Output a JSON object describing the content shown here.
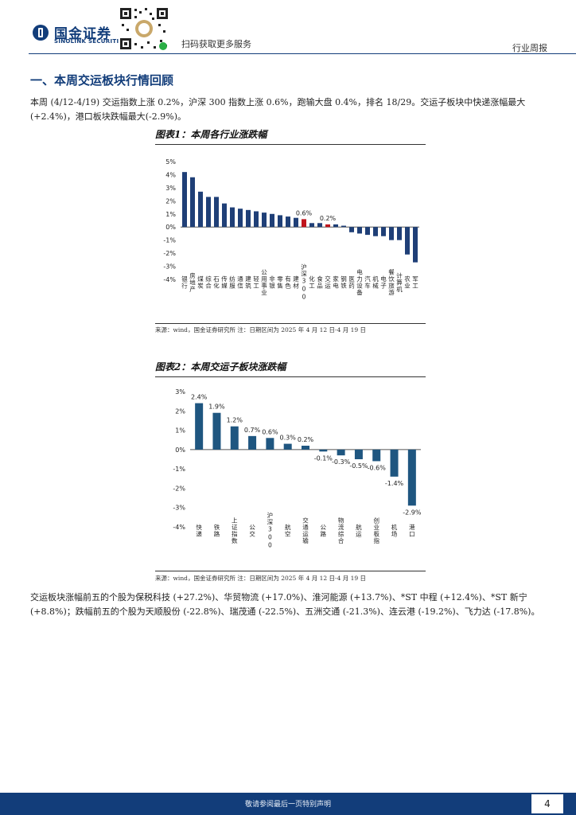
{
  "header": {
    "brand_cn": "国金证券",
    "brand_en": "SINOLINK SECURITIES",
    "qr_caption": "扫码获取更多服务",
    "report_type": "行业周报"
  },
  "section": {
    "title": "一、本周交运板块行情回顾",
    "intro": "本周 (4/12-4/19) 交运指数上涨 0.2%，沪深 300 指数上涨 0.6%，跑输大盘 0.4%，排名 18/29。交运子板块中快递涨幅最大(+2.4%)，港口板块跌幅最大(-2.9%)。",
    "conclusion": "交运板块涨幅前五的个股为保税科技 (+27.2%)、华贸物流 (+17.0%)、淮河能源 (+13.7%)、*ST 中程 (+12.4%)、*ST 新宁 (+8.8%)；跌幅前五的个股为天顺股份 (-22.8%)、瑞茂通 (-22.5%)、五洲交通 (-21.3%)、连云港 (-19.2%)、飞力达 (-17.8%)。"
  },
  "figure1": {
    "title": "图表1：本周各行业涨跌幅",
    "source": "来源：wind，国金证券研究所   注：日期区间为 2025 年 4 月 12 日-4 月 19 日"
  },
  "figure2": {
    "title": "图表2：本周交运子板块涨跌幅",
    "source": "来源：wind，国金证券研究所   注：日期区间为 2025 年 4 月 12 日-4 月 19 日"
  },
  "footer": {
    "disclaimer": "敬请参阅最后一页特别声明",
    "page": "4"
  },
  "colors": {
    "brand": "#123d7a",
    "bar": "#1f3f77",
    "highlight": "#c0141c",
    "bar2": "#1f5680"
  },
  "chart_data": [
    {
      "type": "bar",
      "title": "图表1：本周各行业涨跌幅",
      "categories": [
        "银行",
        "房地产",
        "煤炭",
        "综合",
        "石化",
        "传媒",
        "纺服",
        "通信",
        "建筑",
        "轻工",
        "公用事业",
        "非银",
        "零售",
        "有色",
        "建材",
        "沪深300",
        "化工",
        "食品",
        "交运",
        "家电",
        "钢铁",
        "医药",
        "电力设备",
        "汽车",
        "机械",
        "电子",
        "餐饮旅游",
        "计算机",
        "农业",
        "军工"
      ],
      "values": [
        4.2,
        3.8,
        2.7,
        2.3,
        2.3,
        1.8,
        1.5,
        1.4,
        1.3,
        1.2,
        1.1,
        1.0,
        0.9,
        0.8,
        0.7,
        0.6,
        0.3,
        0.3,
        0.2,
        0.2,
        0.1,
        -0.4,
        -0.5,
        -0.6,
        -0.7,
        -0.7,
        -1.0,
        -1.0,
        -2.1,
        -2.7
      ],
      "highlight": [
        "沪深300",
        "交运"
      ],
      "data_labels": {
        "沪深300": "0.6%",
        "交运": "0.2%"
      },
      "yticks": [
        "5%",
        "4%",
        "3%",
        "2%",
        "1%",
        "0%",
        "-1%",
        "-2%",
        "-3%",
        "-4%"
      ],
      "ylim": [
        -4,
        5
      ]
    },
    {
      "type": "bar",
      "title": "图表2：本周交运子板块涨跌幅",
      "categories": [
        "快递",
        "铁路",
        "上证指数",
        "公交",
        "沪深300",
        "航空",
        "交通运输",
        "公路",
        "物流综合",
        "航运",
        "创业板指",
        "机场",
        "港口"
      ],
      "values": [
        2.4,
        1.9,
        1.2,
        0.7,
        0.6,
        0.3,
        0.2,
        -0.1,
        -0.3,
        -0.5,
        -0.6,
        -1.4,
        -2.9
      ],
      "data_labels": [
        "2.4%",
        "1.9%",
        "1.2%",
        "0.7%",
        "0.6%",
        "0.3%",
        "0.2%",
        "-0.1%",
        "-0.3%",
        "-0.5%",
        "-0.6%",
        "-1.4%",
        "-2.9%"
      ],
      "yticks": [
        "3%",
        "2%",
        "1%",
        "0%",
        "-1%",
        "-2%",
        "-3%",
        "-4%"
      ],
      "ylim": [
        -4,
        3
      ]
    }
  ]
}
